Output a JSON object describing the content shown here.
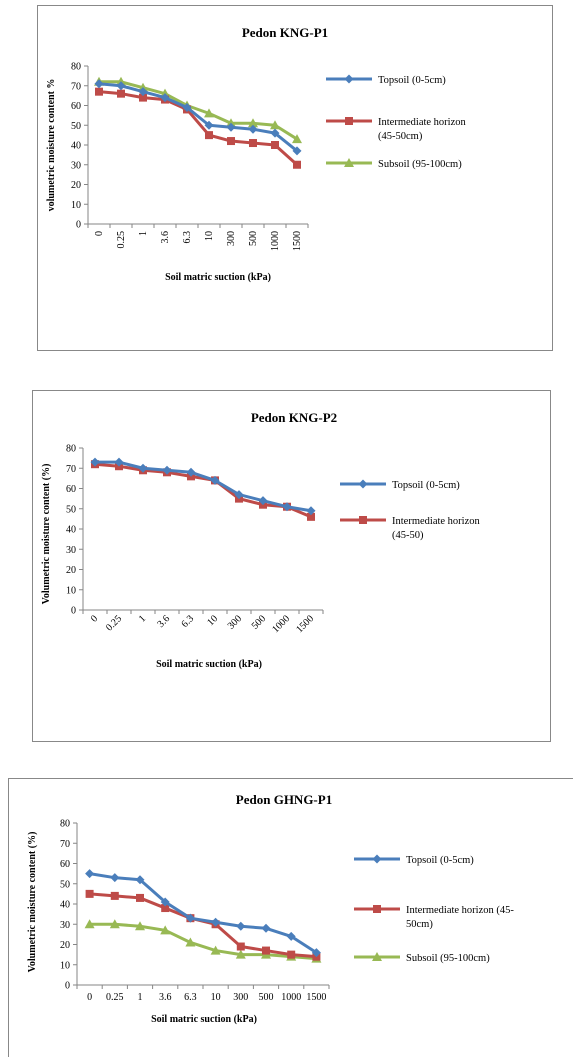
{
  "chart_data": [
    {
      "type": "line",
      "title": "Pedon KNG-P1",
      "xlabel": "Soil matric suction (kPa)",
      "ylabel": "volumetric moisture content %",
      "categories": [
        "0",
        "0.25",
        "1",
        "3.6",
        "6.3",
        "10",
        "300",
        "500",
        "1000",
        "1500"
      ],
      "yticks": [
        "0",
        "10",
        "20",
        "30",
        "40",
        "50",
        "60",
        "70",
        "80"
      ],
      "ylim": [
        0,
        80
      ],
      "xtick_rotation": "vertical",
      "legend_position": "right",
      "series": [
        {
          "name": "Topsoil (0-5cm)",
          "legend_lines": [
            "Topsoil (0-5cm)"
          ],
          "color": "#4a7ebb",
          "marker": "diamond",
          "values": [
            71,
            70,
            67,
            64,
            59,
            50,
            49,
            48,
            46,
            37
          ]
        },
        {
          "name": "Intermediate horizon (45-50cm)",
          "legend_lines": [
            "Intermediate horizon",
            "(45-50cm)"
          ],
          "color": "#be4b48",
          "marker": "square",
          "values": [
            67,
            66,
            64,
            63,
            58,
            45,
            42,
            41,
            40,
            30
          ]
        },
        {
          "name": "Subsoil (95-100cm)",
          "legend_lines": [
            "Subsoil (95-100cm)"
          ],
          "color": "#98b954",
          "marker": "triangle",
          "values": [
            72,
            72,
            69,
            66,
            60,
            56,
            51,
            51,
            50,
            43
          ]
        }
      ]
    },
    {
      "type": "line",
      "title": "Pedon KNG-P2",
      "xlabel": "Soil matric suction (kPa)",
      "ylabel": "Volumetric moisture content (%)",
      "categories": [
        "0",
        "0.25",
        "1",
        "3.6",
        "6.3",
        "10",
        "300",
        "500",
        "1000",
        "1500"
      ],
      "yticks": [
        "0",
        "10",
        "20",
        "30",
        "40",
        "50",
        "60",
        "70",
        "80"
      ],
      "ylim": [
        0,
        80
      ],
      "xtick_rotation": "diagonal",
      "legend_position": "right",
      "series": [
        {
          "name": "Topsoil (0-5cm)",
          "legend_lines": [
            "Topsoil (0-5cm)"
          ],
          "color": "#4a7ebb",
          "marker": "diamond",
          "values": [
            73,
            73,
            70,
            69,
            68,
            64,
            57,
            54,
            51,
            49
          ]
        },
        {
          "name": "Intermediate horizon (45-50)",
          "legend_lines": [
            "Intermediate horizon",
            "(45-50)"
          ],
          "color": "#be4b48",
          "marker": "square",
          "values": [
            72,
            71,
            69,
            68,
            66,
            64,
            55,
            52,
            51,
            46
          ]
        }
      ]
    },
    {
      "type": "line",
      "title": "Pedon GHNG-P1",
      "xlabel": "Soil matric suction (kPa)",
      "ylabel": "Volumetric moisture content (%)",
      "categories": [
        "0",
        "0.25",
        "1",
        "3.6",
        "6.3",
        "10",
        "300",
        "500",
        "1000",
        "1500"
      ],
      "yticks": [
        "0",
        "10",
        "20",
        "30",
        "40",
        "50",
        "60",
        "70",
        "80"
      ],
      "ylim": [
        0,
        80
      ],
      "xtick_rotation": "horizontal",
      "legend_position": "right",
      "series": [
        {
          "name": "Topsoil (0-5cm)",
          "legend_lines": [
            "Topsoil (0-5cm)"
          ],
          "color": "#4a7ebb",
          "marker": "diamond",
          "values": [
            55,
            53,
            52,
            41,
            33,
            31,
            29,
            28,
            24,
            16
          ]
        },
        {
          "name": "Intermediate horizon (45-50cm)",
          "legend_lines": [
            "Intermediate horizon (45-",
            "50cm)"
          ],
          "color": "#be4b48",
          "marker": "square",
          "values": [
            45,
            44,
            43,
            38,
            33,
            30,
            19,
            17,
            15,
            14
          ]
        },
        {
          "name": "Subsoil (95-100cm)",
          "legend_lines": [
            "Subsoil (95-100cm)"
          ],
          "color": "#98b954",
          "marker": "triangle",
          "values": [
            30,
            30,
            29,
            27,
            21,
            17,
            15,
            15,
            14,
            13
          ]
        }
      ]
    }
  ]
}
